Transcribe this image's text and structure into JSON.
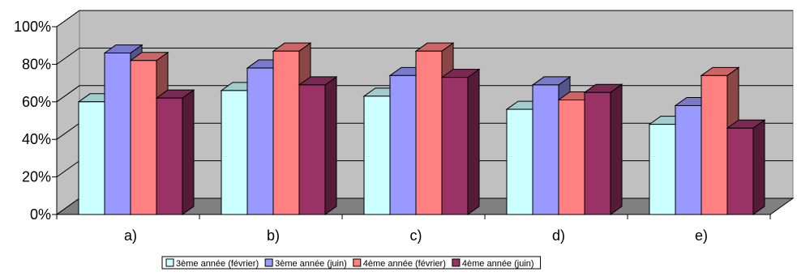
{
  "chart_data": {
    "type": "bar",
    "categories": [
      "a)",
      "b)",
      "c)",
      "d)",
      "e)"
    ],
    "series": [
      {
        "name": "3ème année (février)",
        "color": "#ccffff",
        "values": [
          60,
          66,
          63,
          56,
          48
        ]
      },
      {
        "name": "3ème année (juin)",
        "color": "#9999ff",
        "values": [
          86,
          78,
          74,
          69,
          58
        ]
      },
      {
        "name": "4ème année (février)",
        "color": "#ff8080",
        "values": [
          82,
          87,
          87,
          61,
          74
        ]
      },
      {
        "name": "4ème année (juin)",
        "color": "#993366",
        "values": [
          62,
          69,
          73,
          65,
          46
        ]
      }
    ],
    "ylim": [
      0,
      100
    ],
    "yticks": [
      0,
      20,
      40,
      60,
      80,
      100
    ],
    "ytick_labels": [
      "0%",
      "20%",
      "40%",
      "60%",
      "80%",
      "100%"
    ],
    "grid": true,
    "legend_position": "bottom",
    "colors": {
      "wall": "#c0c0c0",
      "floor": "#808080",
      "gridline": "#000000"
    }
  }
}
